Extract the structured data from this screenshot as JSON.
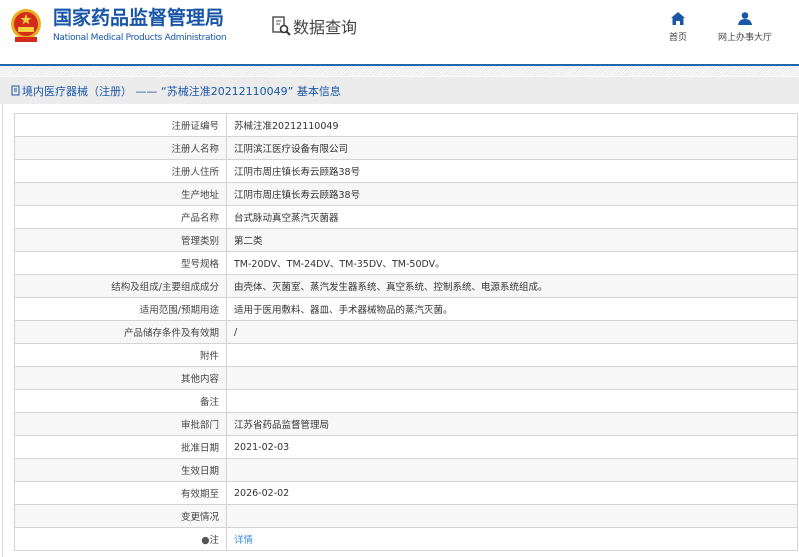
{
  "header": {
    "logo_cn": "国家药品监督管理局",
    "logo_en": "National Medical Products Administration",
    "section": "数据查询",
    "nav": [
      {
        "label": "首页",
        "icon": "home-icon"
      },
      {
        "label": "网上办事大厅",
        "icon": "user-icon"
      }
    ]
  },
  "breadcrumb": "境内医疗器械（注册） —— “苏械注准20212110049” 基本信息",
  "colors": {
    "brand": "#1a56a8",
    "link": "#3a8ee6"
  },
  "rows": [
    {
      "label": "注册证编号",
      "value": "苏械注准20212110049"
    },
    {
      "label": "注册人名称",
      "value": "江阴滨江医疗设备有限公司"
    },
    {
      "label": "注册人住所",
      "value": "江阴市周庄镇长寿云顾路38号"
    },
    {
      "label": "生产地址",
      "value": "江阴市周庄镇长寿云顾路38号"
    },
    {
      "label": "产品名称",
      "value": "台式脉动真空蒸汽灭菌器"
    },
    {
      "label": "管理类别",
      "value": "第二类"
    },
    {
      "label": "型号规格",
      "value": "TM-20DV、TM-24DV、TM-35DV、TM-50DV。"
    },
    {
      "label": "结构及组成/主要组成成分",
      "value": "由壳体、灭菌室、蒸汽发生器系统、真空系统、控制系统、电源系统组成。"
    },
    {
      "label": "适用范围/预期用途",
      "value": "适用于医用敷料、器皿、手术器械物品的蒸汽灭菌。"
    },
    {
      "label": "产品储存条件及有效期",
      "value": "/"
    },
    {
      "label": "附件",
      "value": ""
    },
    {
      "label": "其他内容",
      "value": ""
    },
    {
      "label": "备注",
      "value": ""
    },
    {
      "label": "审批部门",
      "value": "江苏省药品监督管理局"
    },
    {
      "label": "批准日期",
      "value": "2021-02-03"
    },
    {
      "label": "生效日期",
      "value": ""
    },
    {
      "label": "有效期至",
      "value": "2026-02-02"
    },
    {
      "label": "变更情况",
      "value": ""
    },
    {
      "label": "注",
      "value": "详情"
    }
  ]
}
